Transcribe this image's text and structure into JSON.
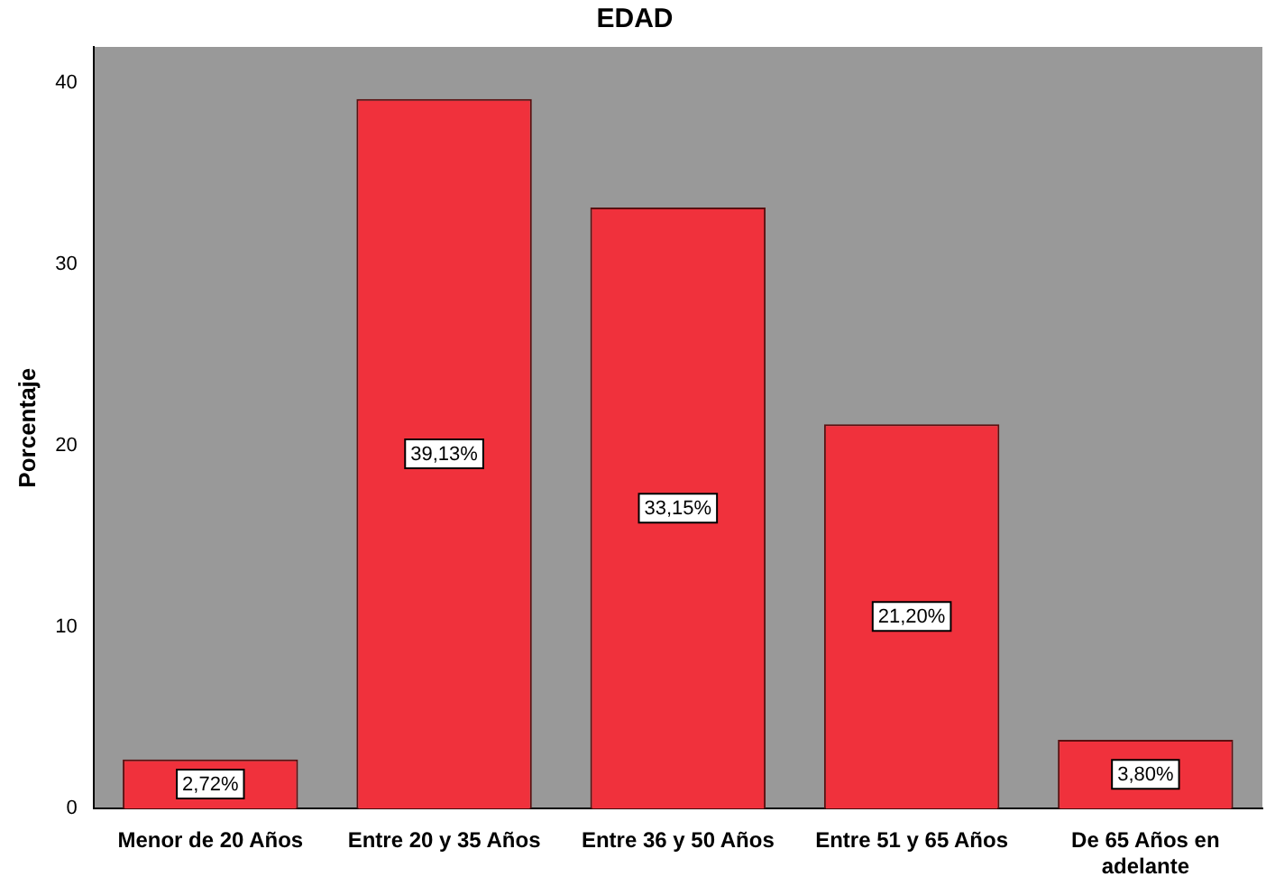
{
  "chart_data": {
    "type": "bar",
    "title": "EDAD",
    "ylabel": "Porcentaje",
    "categories": [
      "Menor de 20 Años",
      "Entre 20 y 35 Años",
      "Entre 36 y 50 Años",
      "Entre 51 y 65 Años",
      "De 65 Años en adelante"
    ],
    "values": [
      2.72,
      39.13,
      33.15,
      21.2,
      3.8
    ],
    "value_labels": [
      "2,72%",
      "39,13%",
      "33,15%",
      "21,20%",
      "3,80%"
    ],
    "color": "#f0313c",
    "ylim": [
      0,
      42
    ],
    "yticks": [
      0,
      10,
      20,
      30,
      40
    ],
    "grid": false,
    "legend": false
  }
}
